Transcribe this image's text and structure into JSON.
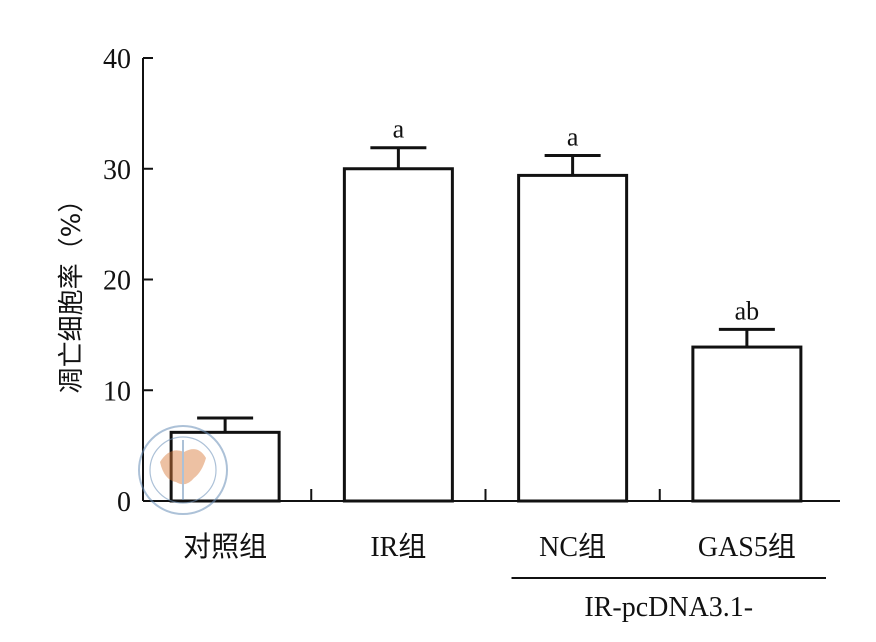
{
  "chart_data": {
    "type": "bar",
    "title": "",
    "ylabel": "凋亡细胞率（%）",
    "xlabel": "",
    "ylim": [
      0,
      40
    ],
    "yticks": [
      0,
      10,
      20,
      30,
      40
    ],
    "categories": [
      "对照组",
      "IR组",
      "NC组",
      "GAS5组"
    ],
    "values": [
      6.2,
      30.0,
      29.4,
      13.9
    ],
    "errors": [
      1.3,
      1.9,
      1.8,
      1.6
    ],
    "significance": [
      "",
      "a",
      "a",
      "ab"
    ],
    "group_label": "IR-pcDNA3.1-",
    "grid": false,
    "legend": "none"
  },
  "colors": {
    "bar_fill": "#ffffff",
    "stroke": "#111111",
    "stamp": "#d87a3a"
  },
  "stamp_icon": "medical-association-seal"
}
